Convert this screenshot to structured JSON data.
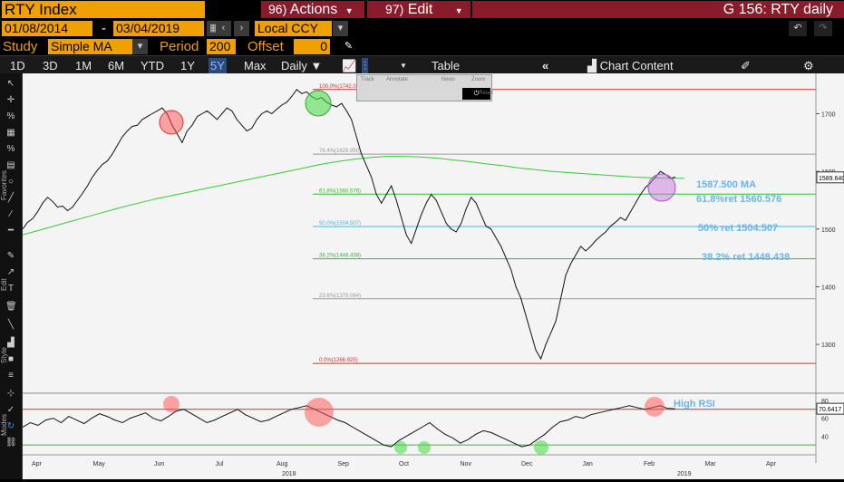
{
  "header": {
    "ticker": "RTY Index",
    "actions_num": "96)",
    "actions_label": "Actions",
    "edit_num": "97)",
    "edit_label": "Edit",
    "title": "G 156: RTY daily"
  },
  "dates": {
    "start": "01/08/2014",
    "end": "03/04/2019",
    "sep": "-"
  },
  "currency": "Local CCY",
  "study": {
    "label": "Study",
    "value": "Simple MA",
    "period_label": "Period",
    "period_value": "200",
    "offset_label": "Offset",
    "offset_value": "0"
  },
  "range_tabs": [
    "1D",
    "3D",
    "1M",
    "6M",
    "YTD",
    "1Y",
    "5Y",
    "Max"
  ],
  "active_tab": "5Y",
  "frequency": "Daily",
  "table_label": "Table",
  "chart_content_label": "Chart Content",
  "popup": {
    "track": "Track",
    "annotate": "Annotate",
    "news": "News",
    "zoom": "Zoom",
    "reset": "Reset"
  },
  "sidebar_labels": [
    "Favorites",
    "Edit",
    "Style",
    "Modes"
  ],
  "chart_data": {
    "type": "line",
    "ylim": [
      1220,
      1770
    ],
    "y_ticks": [
      1300,
      1400,
      1500,
      1600,
      1700
    ],
    "x_ticks": [
      "Apr",
      "May",
      "Jun",
      "Jul",
      "Aug",
      "Sep",
      "Oct",
      "Nov",
      "Dec",
      "Jan",
      "Feb",
      "Mar",
      "Apr"
    ],
    "year_labels": [
      "2018",
      "2019"
    ],
    "last_price": "1589.640",
    "fib_levels": [
      {
        "label": "100.0%(1742.089)",
        "value": 1742.089,
        "color": "#cc3333"
      },
      {
        "label": "76.4%(1629.950)",
        "value": 1629.95,
        "color": "#999999"
      },
      {
        "label": "61.8%(1560.576)",
        "value": 1560.576,
        "color": "#33bb33"
      },
      {
        "label": "50.0%(1504.507)",
        "value": 1504.507,
        "color": "#33bbee"
      },
      {
        "label": "38.2%(1448.438)",
        "value": 1448.438,
        "color": "#33bb33"
      },
      {
        "label": "23.6%(1379.064)",
        "value": 1379.064,
        "color": "#999999"
      },
      {
        "label": "0.0%(1266.925)",
        "value": 1266.925,
        "color": "#cc3333"
      }
    ],
    "annotations": [
      {
        "text": "1587.500 MA",
        "color": "#6ab4e8"
      },
      {
        "text": "61.8%ret 1560.576",
        "color": "#6ab4e8"
      },
      {
        "text": "50% ret 1504.507",
        "color": "#6ab4e8"
      },
      {
        "text": "38.2% ret 1448.438",
        "color": "#6ab4e8"
      }
    ],
    "rsi": {
      "label": "High RSI",
      "last": "70.6417",
      "ticks": [
        80,
        60,
        40
      ],
      "ylim": [
        20,
        86
      ]
    },
    "price_series": [
      1500,
      1512,
      1518,
      1530,
      1545,
      1555,
      1548,
      1538,
      1540,
      1532,
      1538,
      1550,
      1562,
      1575,
      1590,
      1602,
      1612,
      1618,
      1630,
      1645,
      1660,
      1670,
      1678,
      1680,
      1690,
      1695,
      1700,
      1705,
      1710,
      1700,
      1680,
      1665,
      1650,
      1670,
      1680,
      1695,
      1700,
      1705,
      1698,
      1690,
      1700,
      1710,
      1705,
      1690,
      1680,
      1670,
      1675,
      1690,
      1700,
      1705,
      1700,
      1708,
      1715,
      1720,
      1730,
      1742,
      1735,
      1738,
      1730,
      1725,
      1728,
      1720,
      1715,
      1712,
      1718,
      1705,
      1690,
      1660,
      1630,
      1610,
      1590,
      1560,
      1545,
      1560,
      1575,
      1550,
      1520,
      1490,
      1475,
      1500,
      1525,
      1545,
      1560,
      1550,
      1530,
      1510,
      1500,
      1495,
      1510,
      1535,
      1555,
      1545,
      1525,
      1505,
      1500,
      1485,
      1470,
      1450,
      1430,
      1400,
      1380,
      1350,
      1320,
      1290,
      1275,
      1300,
      1320,
      1340,
      1380,
      1420,
      1440,
      1455,
      1470,
      1462,
      1470,
      1480,
      1488,
      1495,
      1505,
      1512,
      1520,
      1515,
      1530,
      1545,
      1560,
      1572,
      1580,
      1590,
      1600,
      1595,
      1588,
      1590
    ],
    "ma_series": [
      1490,
      1498,
      1506,
      1514,
      1522,
      1530,
      1538,
      1545,
      1552,
      1558,
      1564,
      1570,
      1576,
      1582,
      1588,
      1594,
      1600,
      1606,
      1612,
      1617,
      1621,
      1624,
      1626,
      1626,
      1625,
      1623,
      1620,
      1617,
      1613,
      1610,
      1606,
      1603,
      1600,
      1598,
      1596,
      1594,
      1592,
      1590,
      1589,
      1588,
      1588
    ],
    "rsi_series": [
      50,
      55,
      52,
      58,
      60,
      55,
      62,
      58,
      54,
      60,
      65,
      62,
      58,
      55,
      60,
      63,
      66,
      60,
      57,
      62,
      68,
      70,
      65,
      60,
      55,
      58,
      62,
      66,
      70,
      64,
      60,
      56,
      58,
      62,
      66,
      70,
      72,
      74,
      70,
      66,
      62,
      58,
      55,
      50,
      45,
      40,
      35,
      30,
      28,
      35,
      40,
      45,
      50,
      55,
      48,
      42,
      38,
      32,
      36,
      42,
      46,
      44,
      40,
      36,
      32,
      28,
      30,
      36,
      42,
      50,
      56,
      58,
      62,
      60,
      64,
      66,
      68,
      70,
      72,
      74,
      72,
      70,
      72,
      74,
      71,
      70.6
    ]
  }
}
